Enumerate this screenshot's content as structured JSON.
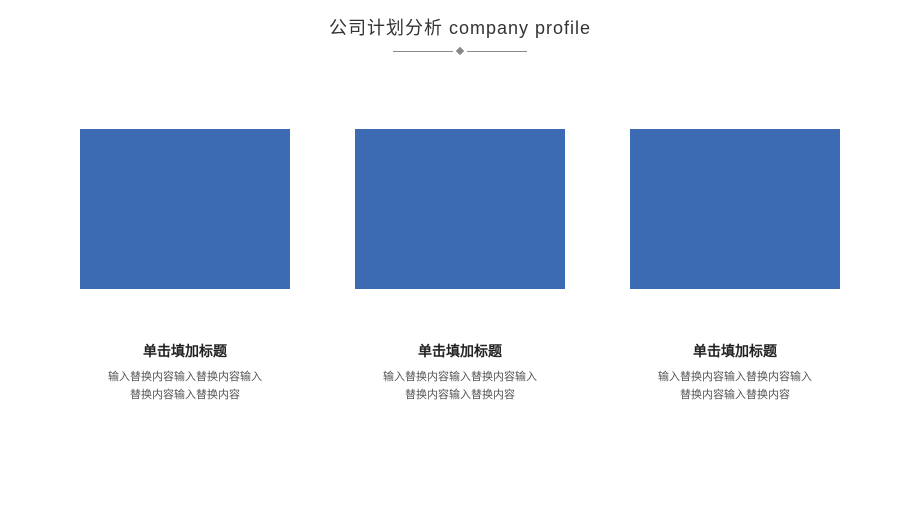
{
  "slide": {
    "title": "公司计划分析 company profile",
    "title_color": "#333333",
    "title_fontsize": 18,
    "divider": {
      "line_color": "#888888",
      "diamond_color": "#888888"
    },
    "background_color": "#ffffff"
  },
  "cards": [
    {
      "image_color": "#3c6bb3",
      "title": "单击填加标题",
      "body": "输入替换内容输入替换内容输入\n替换内容输入替换内容"
    },
    {
      "image_color": "#3c6bb3",
      "title": "单击填加标题",
      "body": "输入替换内容输入替换内容输入\n替换内容输入替换内容"
    },
    {
      "image_color": "#3c6bb3",
      "title": "单击填加标题",
      "body": "输入替换内容输入替换内容输入\n替换内容输入替换内容"
    }
  ],
  "styles": {
    "card_title_color": "#222222",
    "card_title_fontsize": 14,
    "card_body_color": "#555555",
    "card_body_fontsize": 11
  }
}
